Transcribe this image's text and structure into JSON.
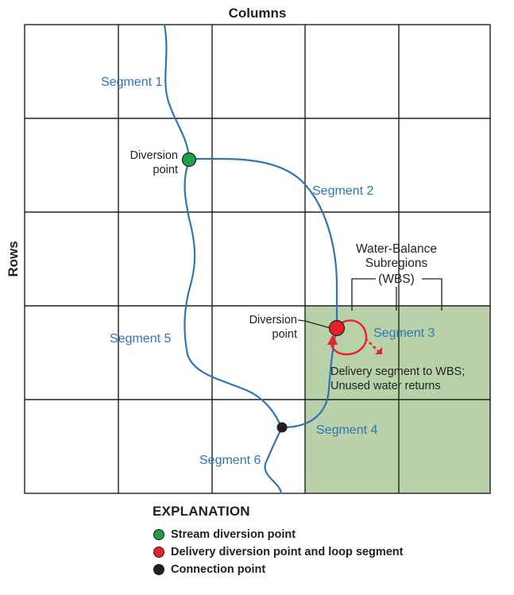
{
  "header": {
    "columns_label": "Columns",
    "rows_label": "Rows"
  },
  "labels": {
    "segment1": "Segment 1",
    "segment2": "Segment 2",
    "segment3": "Segment 3",
    "segment4": "Segment 4",
    "segment5": "Segment 5",
    "segment6": "Segment 6",
    "diversion_a_line1": "Diversion",
    "diversion_a_line2": "point",
    "diversion_b_line1": "Diversion",
    "diversion_b_line2": "point",
    "wbs_line1": "Water-Balance",
    "wbs_line2": "Subregions",
    "wbs_line3": "(WBS)",
    "delivery_line1": "Delivery segment to WBS;",
    "delivery_line2": "Unused water returns"
  },
  "legend": {
    "title": "EXPLANATION",
    "items": [
      {
        "label": "Stream diversion point",
        "color": "#1e9e4a"
      },
      {
        "label": "Delivery diversion point and loop segment",
        "color": "#e8222a"
      },
      {
        "label": "Connection point",
        "color": "#231f20"
      }
    ]
  },
  "colors": {
    "stream": "#2e75b6",
    "wbs_fill": "#b9d1a9",
    "grid": "#231f20",
    "stream_diversion": "#1e9e4a",
    "delivery_diversion": "#e8222a",
    "connection": "#231f20"
  }
}
